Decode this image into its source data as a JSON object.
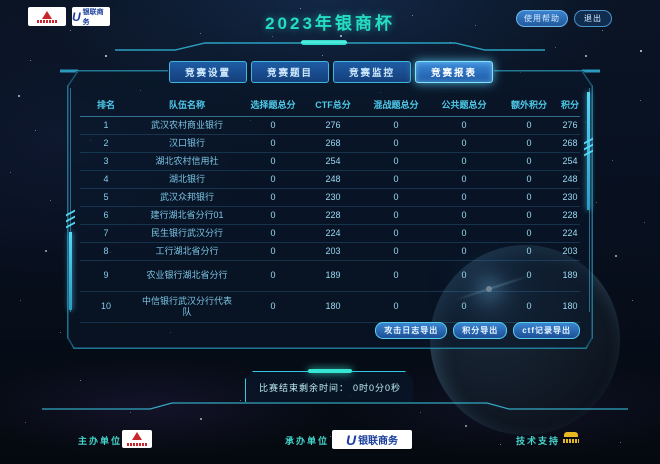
{
  "header": {
    "title": "2023年银商杯",
    "help_button": "使用帮助",
    "exit_button": "退出",
    "unionpay_logo_text": "银联商务"
  },
  "tabs": [
    {
      "label": "竞赛设置",
      "active": false
    },
    {
      "label": "竞赛题目",
      "active": false
    },
    {
      "label": "竞赛监控",
      "active": false
    },
    {
      "label": "竞赛报表",
      "active": true
    }
  ],
  "table": {
    "columns": [
      "排名",
      "队伍名称",
      "选择题总分",
      "CTF总分",
      "混战题总分",
      "公共题总分",
      "额外积分",
      "积分"
    ],
    "rows": [
      [
        "1",
        "武汉农村商业银行",
        "0",
        "276",
        "0",
        "0",
        "0",
        "276"
      ],
      [
        "2",
        "汉口银行",
        "0",
        "268",
        "0",
        "0",
        "0",
        "268"
      ],
      [
        "3",
        "湖北农村信用社",
        "0",
        "254",
        "0",
        "0",
        "0",
        "254"
      ],
      [
        "4",
        "湖北银行",
        "0",
        "248",
        "0",
        "0",
        "0",
        "248"
      ],
      [
        "5",
        "武汉众邦银行",
        "0",
        "230",
        "0",
        "0",
        "0",
        "230"
      ],
      [
        "6",
        "建行湖北省分行01",
        "0",
        "228",
        "0",
        "0",
        "0",
        "228"
      ],
      [
        "7",
        "民生银行武汉分行",
        "0",
        "224",
        "0",
        "0",
        "0",
        "224"
      ],
      [
        "8",
        "工行湖北省分行",
        "0",
        "203",
        "0",
        "0",
        "0",
        "203"
      ],
      [
        "9",
        "农业银行湖北省分行",
        "0",
        "189",
        "0",
        "0",
        "0",
        "189"
      ],
      [
        "10",
        "中信银行武汉分行代表队",
        "0",
        "180",
        "0",
        "0",
        "0",
        "180"
      ]
    ]
  },
  "export_buttons": [
    "攻击日志导出",
    "积分导出",
    "ctf记录导出"
  ],
  "countdown": {
    "label": "比赛结束剩余时间：",
    "value": "0时0分0秒"
  },
  "footer": {
    "host_label": "主办单位",
    "organizer_label": "承办单位",
    "support_label": "技术支持",
    "organizer_logo_text": "银联商务"
  },
  "colors": {
    "accent_teal": "#25dcc4",
    "accent_cyan": "#3fb6e0",
    "tab_blue": "#1f5ca4"
  }
}
